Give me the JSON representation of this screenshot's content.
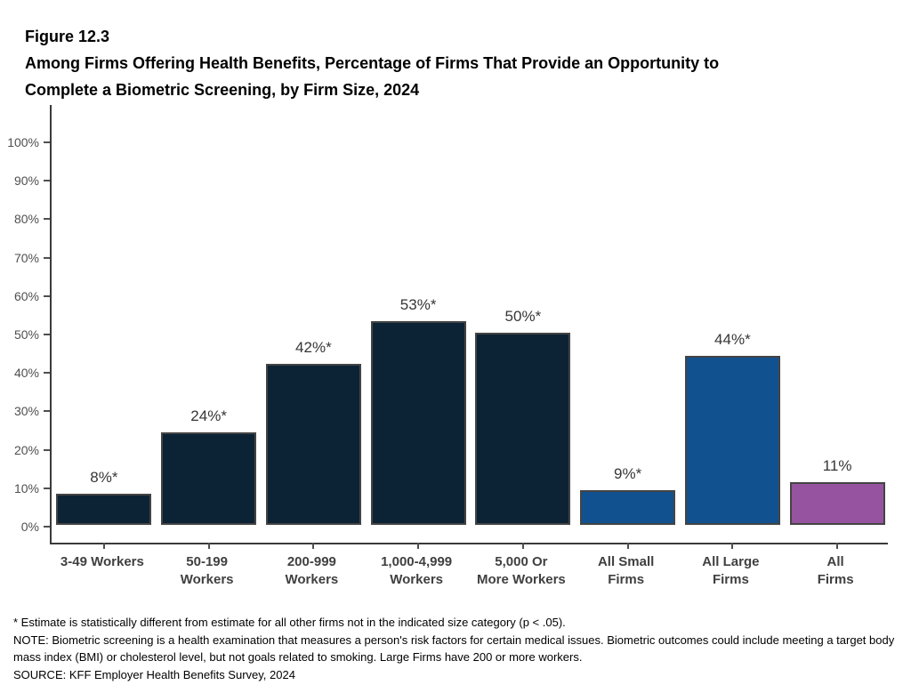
{
  "figure": {
    "number": "Figure 12.3",
    "title": "Among Firms Offering Health Benefits, Percentage of Firms That Provide an Opportunity to\nComplete a Biometric Screening, by Firm Size, 2024"
  },
  "chart_data": {
    "type": "bar",
    "title": "Among Firms Offering Health Benefits, Percentage of Firms That Provide an Opportunity to Complete a Biometric Screening, by Firm Size, 2024",
    "categories": [
      "3-49 Workers",
      "50-199\nWorkers",
      "200-999\nWorkers",
      "1,000-4,999\nWorkers",
      "5,000 Or\nMore Workers",
      "All Small\nFirms",
      "All Large\nFirms",
      "All Firms"
    ],
    "values": [
      8,
      24,
      42,
      53,
      50,
      9,
      44,
      11
    ],
    "value_labels": [
      "8%*",
      "24%*",
      "42%*",
      "53%*",
      "50%*",
      "9%*",
      "44%*",
      "11%"
    ],
    "bar_colors": [
      "#0c2336",
      "#0c2336",
      "#0c2336",
      "#0c2336",
      "#0c2336",
      "#11518f",
      "#11518f",
      "#9654a0"
    ],
    "bar_border_color": "#444444",
    "axis_color": "#3a3a3a",
    "xlabel": "",
    "ylabel": "",
    "ylim": [
      0,
      100
    ],
    "yticks": [
      0,
      10,
      20,
      30,
      40,
      50,
      60,
      70,
      80,
      90,
      100
    ],
    "ytick_labels": [
      "0%",
      "10%",
      "20%",
      "30%",
      "40%",
      "50%",
      "60%",
      "70%",
      "80%",
      "90%",
      "100%"
    ],
    "grid": "off",
    "legend": "none"
  },
  "footnotes": {
    "asterisk": "* Estimate is statistically different from estimate for all other firms not in the indicated size category (p < .05).",
    "note": "NOTE: Biometric screening is a health examination that measures a person's risk factors for certain medical issues. Biometric outcomes could include meeting a target body mass index (BMI) or cholesterol level, but not goals related to smoking.  Large Firms have 200 or more workers.",
    "source": "SOURCE: KFF Employer Health Benefits Survey, 2024"
  }
}
